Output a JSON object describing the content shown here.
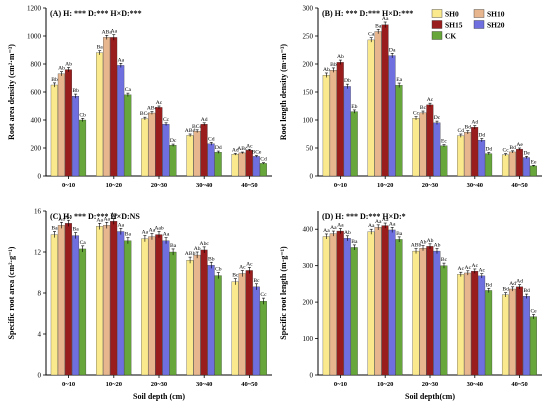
{
  "figure": {
    "legend": [
      {
        "name": "SH0",
        "color": "#fbe98e"
      },
      {
        "name": "SH10",
        "color": "#e7b58e"
      },
      {
        "name": "SH15",
        "color": "#9a1d1d"
      },
      {
        "name": "SH20",
        "color": "#6f6fe0"
      },
      {
        "name": "CK",
        "color": "#66a63a"
      }
    ]
  },
  "chart_data": [
    {
      "type": "bar",
      "panel": "(A)",
      "title": "(A)  H: ***   D:***   H×D:***",
      "ylabel": "Root area density (cm²·m⁻³)",
      "xlabel": "",
      "ylim": [
        0,
        1200
      ],
      "yticks": [
        0,
        200,
        400,
        600,
        800,
        1000,
        1200
      ],
      "categories": [
        "0~10",
        "10~20",
        "20~30",
        "30~40",
        "40~50"
      ],
      "series": [
        {
          "name": "SH0",
          "values": [
            650,
            880,
            410,
            290,
            155
          ],
          "errors": [
            15,
            15,
            10,
            10,
            6
          ],
          "letters": [
            "Bb",
            "Ba",
            "BCc",
            "ABd",
            "Ad"
          ]
        },
        {
          "name": "SH10",
          "values": [
            730,
            990,
            450,
            320,
            165
          ],
          "errors": [
            15,
            15,
            10,
            10,
            6
          ],
          "letters": [
            "Ab",
            "ABa",
            "ABc",
            "BCd",
            "ABc"
          ]
        },
        {
          "name": "SH15",
          "values": [
            760,
            990,
            490,
            370,
            185
          ],
          "errors": [
            15,
            20,
            10,
            10,
            6
          ],
          "letters": [
            "Ab",
            "Aa",
            "Ac",
            "Ad",
            "Ac"
          ]
        },
        {
          "name": "SH20",
          "values": [
            570,
            790,
            370,
            230,
            140
          ],
          "errors": [
            15,
            15,
            10,
            10,
            6
          ],
          "letters": [
            "Bb",
            "Aa",
            "Cc",
            "Cd",
            "BCe"
          ]
        },
        {
          "name": "CK",
          "values": [
            400,
            580,
            220,
            170,
            90
          ],
          "errors": [
            12,
            12,
            8,
            8,
            5
          ],
          "letters": [
            "Cb",
            "Ca",
            "Dc",
            "Dd",
            "Cd"
          ]
        }
      ]
    },
    {
      "type": "bar",
      "panel": "(B)",
      "title": "(B)  H: ***   D:***   H×D:***",
      "ylabel": "Root length density (m·m⁻³)",
      "xlabel": "",
      "ylim": [
        0,
        300
      ],
      "yticks": [
        0,
        50,
        100,
        150,
        200,
        250,
        300
      ],
      "categories": [
        "0~10",
        "10~20",
        "20~30",
        "30~40",
        "40~50"
      ],
      "series": [
        {
          "name": "SH0",
          "values": [
            180,
            243,
            103,
            72,
            38
          ],
          "errors": [
            4,
            4,
            3,
            3,
            2
          ],
          "letters": [
            "Ab",
            "Ca",
            "Cc",
            "Cd",
            "Cc"
          ]
        },
        {
          "name": "SH10",
          "values": [
            189,
            258,
            113,
            78,
            43
          ],
          "errors": [
            4,
            4,
            3,
            3,
            2
          ],
          "letters": [
            "Bb",
            "Ba",
            "Bc",
            "Bd",
            "Bd"
          ]
        },
        {
          "name": "SH15",
          "values": [
            203,
            270,
            127,
            87,
            48
          ],
          "errors": [
            4,
            5,
            3,
            3,
            2
          ],
          "letters": [
            "Ab",
            "Aa",
            "Ac",
            "Ad",
            "Ae"
          ]
        },
        {
          "name": "SH20",
          "values": [
            160,
            215,
            95,
            64,
            33
          ],
          "errors": [
            4,
            4,
            3,
            3,
            2
          ],
          "letters": [
            "Db",
            "Da",
            "Dc",
            "Dd",
            "De"
          ]
        },
        {
          "name": "CK",
          "values": [
            115,
            162,
            54,
            40,
            18
          ],
          "errors": [
            3,
            4,
            2,
            2,
            1
          ],
          "letters": [
            "Eb",
            "Ea",
            "Ec",
            "Dd",
            "Ee"
          ]
        }
      ]
    },
    {
      "type": "bar",
      "panel": "(C)",
      "title": "(C)  H: ***   D:***   H×D:NS",
      "ylabel": "Specific root area (cm²·g⁻¹)",
      "xlabel": "Soil depth (cm)",
      "ylim": [
        0,
        16
      ],
      "yticks": [
        0,
        4,
        8,
        12,
        16
      ],
      "categories": [
        "0~10",
        "10~20",
        "20~30",
        "30~40",
        "40~50"
      ],
      "series": [
        {
          "name": "SH0",
          "values": [
            13.7,
            14.5,
            13.3,
            11.2,
            9.1
          ],
          "errors": [
            0.3,
            0.3,
            0.3,
            0.3,
            0.3
          ],
          "letters": [
            "Ba",
            "Aa",
            "Aa",
            "ABb",
            "Bc"
          ]
        },
        {
          "name": "SH10",
          "values": [
            14.6,
            14.6,
            13.5,
            11.7,
            9.9
          ],
          "errors": [
            0.3,
            0.3,
            0.3,
            0.3,
            0.3
          ],
          "letters": [
            "Aa",
            "Aa",
            "Aa",
            "Ab",
            "Ac"
          ]
        },
        {
          "name": "SH15",
          "values": [
            14.8,
            15.0,
            13.7,
            12.2,
            10.2
          ],
          "errors": [
            0.3,
            0.3,
            0.3,
            0.3,
            0.3
          ],
          "letters": [
            "Aa",
            "Aa",
            "Aab",
            "Abc",
            "Ac"
          ]
        },
        {
          "name": "SH20",
          "values": [
            13.6,
            14.0,
            13.1,
            10.7,
            8.6
          ],
          "errors": [
            0.3,
            0.3,
            0.3,
            0.3,
            0.3
          ],
          "letters": [
            "Ba",
            "Aa",
            "Aa",
            "Bb",
            "Bc"
          ]
        },
        {
          "name": "CK",
          "values": [
            12.3,
            13.1,
            12.0,
            9.7,
            7.2
          ],
          "errors": [
            0.3,
            0.3,
            0.3,
            0.3,
            0.3
          ],
          "letters": [
            "Ca",
            "Ba",
            "Ba",
            "Cb",
            "Cc"
          ]
        }
      ]
    },
    {
      "type": "bar",
      "panel": "(D)",
      "title": "(D)  H: ***   D:***   H×D:*",
      "ylabel": "Specific root length (m·g⁻¹)",
      "xlabel": "Soil depth(cm)",
      "ylim": [
        0,
        450
      ],
      "yticks": [
        0,
        100,
        200,
        300,
        400
      ],
      "categories": [
        "0~10",
        "10~20",
        "20~30",
        "30~40",
        "40~50"
      ],
      "series": [
        {
          "name": "SH0",
          "values": [
            380,
            393,
            340,
            276,
            220
          ],
          "errors": [
            7,
            7,
            7,
            6,
            6
          ],
          "letters": [
            "Aa",
            "Aa",
            "ABb",
            "Ac",
            "Bd"
          ]
        },
        {
          "name": "SH10",
          "values": [
            388,
            405,
            348,
            280,
            236
          ],
          "errors": [
            7,
            7,
            7,
            6,
            6
          ],
          "letters": [
            "Aa",
            "Aa",
            "Ab",
            "Ac",
            "Ad"
          ]
        },
        {
          "name": "SH15",
          "values": [
            395,
            410,
            353,
            285,
            242
          ],
          "errors": [
            7,
            7,
            7,
            6,
            6
          ],
          "letters": [
            "Aa",
            "Aa",
            "Ab",
            "Ac",
            "Ad"
          ]
        },
        {
          "name": "SH20",
          "values": [
            375,
            398,
            340,
            272,
            216
          ],
          "errors": [
            7,
            7,
            7,
            6,
            6
          ],
          "letters": [
            "Ab",
            "Aa",
            "Ab",
            "Ac",
            "Bd"
          ]
        },
        {
          "name": "CK",
          "values": [
            350,
            372,
            300,
            232,
            160
          ],
          "errors": [
            7,
            7,
            7,
            6,
            6
          ],
          "letters": [
            "Ba",
            "Ba",
            "Bc",
            "Bd",
            "Ce"
          ]
        }
      ]
    }
  ]
}
